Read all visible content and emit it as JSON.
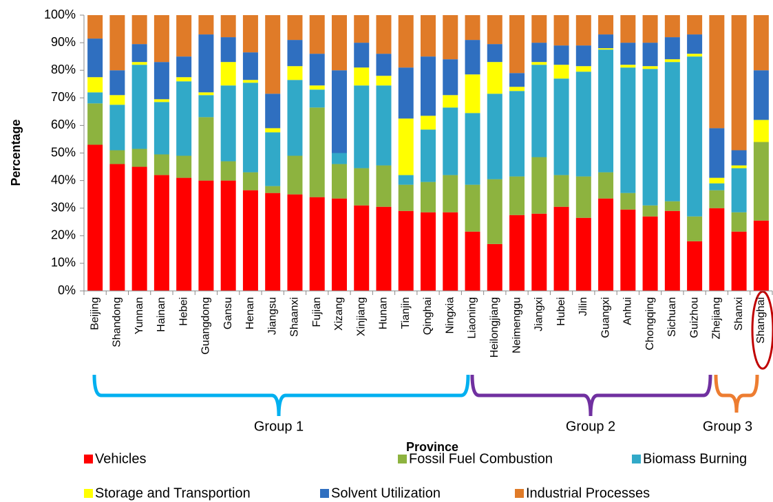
{
  "chart_data": {
    "type": "stacked_bar",
    "ylabel": "Percentage",
    "xlabel": "Province",
    "annotations": [
      "Group 1",
      "Group 2",
      "Group 3"
    ],
    "categories": [
      "Beijing",
      "Shandong",
      "Yunnan",
      "Hainan",
      "Hebei",
      "Guangdong",
      "Gansu",
      "Henan",
      "Jiangsu",
      "Shaanxi",
      "Fujian",
      "Xizang",
      "Xinjiang",
      "Hunan",
      "Tianjin",
      "Qinghai",
      "Ningxia",
      "Liaoning",
      "Heilongjiang",
      "Neimenggu",
      "Jiangxi",
      "Hubei",
      "Jilin",
      "Guangxi",
      "Anhui",
      "Chongqing",
      "Sichuan",
      "Guizhou",
      "Zhejiang",
      "Shanxi",
      "Shanghai"
    ],
    "series": [
      {
        "name": "Vehicles",
        "color": "#ff0000",
        "values": [
          53,
          46,
          45,
          42,
          41,
          40,
          40,
          36.5,
          35.5,
          35,
          34,
          33.5,
          31,
          30.5,
          29,
          28.5,
          28.5,
          21.5,
          17,
          27.5,
          28,
          30.5,
          26.5,
          33.5,
          29.5,
          27,
          29,
          18,
          30,
          21.5,
          25.5
        ]
      },
      {
        "name": "Fossil Fuel Combustion",
        "color": "#8db33f",
        "values": [
          15,
          5,
          6.5,
          7.5,
          8,
          23,
          7,
          6.5,
          2.5,
          14,
          32.5,
          12.5,
          13.5,
          15,
          9.5,
          11,
          13.5,
          17,
          23.5,
          14,
          20.5,
          11.5,
          15,
          9.5,
          6,
          4,
          3.5,
          9,
          6.5,
          7,
          28.5
        ]
      },
      {
        "name": "Biomass Burning",
        "color": "#31a9c8",
        "values": [
          4,
          16.5,
          30.5,
          19,
          27,
          8,
          27.5,
          32.5,
          19.5,
          27.5,
          6.5,
          4,
          30,
          29,
          3.5,
          19,
          24.5,
          26,
          31,
          31,
          33.5,
          35,
          38,
          44.5,
          45.5,
          49.5,
          50.5,
          58,
          2.5,
          16,
          0
        ]
      },
      {
        "name": "Storage and Transportion",
        "color": "#ffff00",
        "values": [
          5.5,
          3.5,
          1,
          1,
          1.5,
          1,
          8.5,
          1,
          1.5,
          5,
          1.5,
          0,
          6.5,
          3.5,
          20.5,
          5,
          4.5,
          14,
          11.5,
          1.5,
          1,
          5,
          2,
          0.5,
          1,
          1,
          1,
          1,
          2,
          1,
          8
        ]
      },
      {
        "name": "Solvent Utilization",
        "color": "#2f6fc0",
        "values": [
          14,
          9,
          6.5,
          13.5,
          7.5,
          21,
          9,
          10,
          12.5,
          9.5,
          11.5,
          30,
          9,
          8,
          18.5,
          21.5,
          13,
          12.5,
          6.5,
          5,
          7,
          7,
          7.5,
          5,
          8,
          8.5,
          8,
          7,
          18,
          5.5,
          18
        ]
      },
      {
        "name": "Industrial Processes",
        "color": "#e07b28",
        "values": [
          8.5,
          20,
          10.5,
          17,
          15,
          7,
          8,
          13.5,
          28.5,
          9,
          14,
          20,
          10,
          14,
          19,
          15,
          16,
          9,
          10.5,
          21,
          10,
          11,
          11,
          7,
          10,
          10,
          8,
          7,
          41,
          49,
          20
        ]
      }
    ],
    "ylim": [
      0,
      100
    ],
    "yticks": [
      {
        "value": 0,
        "label": "0%"
      },
      {
        "value": 10,
        "label": "10%"
      },
      {
        "value": 20,
        "label": "20%"
      },
      {
        "value": 30,
        "label": "30%"
      },
      {
        "value": 40,
        "label": "40%"
      },
      {
        "value": 50,
        "label": "50%"
      },
      {
        "value": 60,
        "label": "60%"
      },
      {
        "value": 70,
        "label": "70%"
      },
      {
        "value": 80,
        "label": "80%"
      },
      {
        "value": 90,
        "label": "90%"
      },
      {
        "value": 100,
        "label": "100%"
      }
    ]
  }
}
